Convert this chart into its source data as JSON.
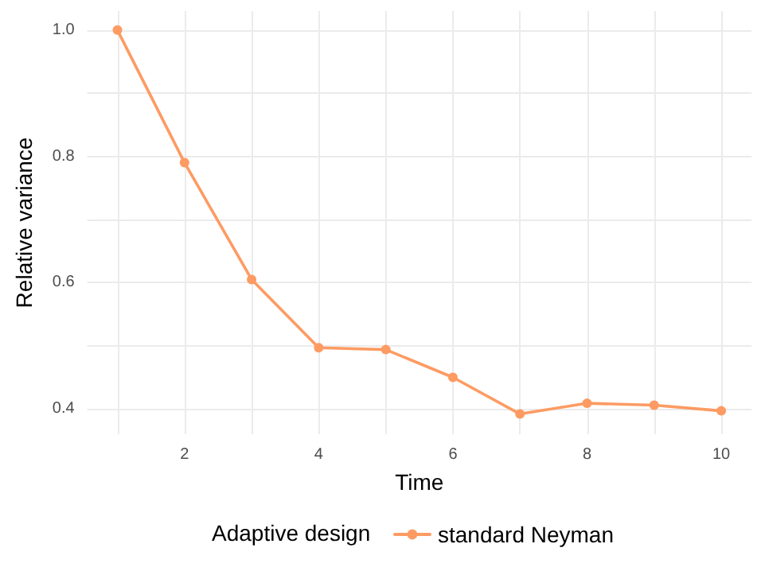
{
  "chart_data": {
    "type": "line",
    "xlabel": "Time",
    "ylabel": "Relative variance",
    "legend_title": "Adaptive design",
    "x": [
      1,
      2,
      3,
      4,
      5,
      6,
      7,
      8,
      9,
      10
    ],
    "series": [
      {
        "name": "standard Neyman",
        "color": "#fd9b63",
        "values": [
          1.0,
          0.79,
          0.605,
          0.497,
          0.494,
          0.45,
          0.392,
          0.409,
          0.406,
          0.397
        ]
      }
    ],
    "xlim": [
      0.55,
      10.45
    ],
    "ylim": [
      0.36,
      1.03
    ],
    "xticks": [
      {
        "value": 1,
        "label": null
      },
      2,
      {
        "value": 3,
        "label": null
      },
      4,
      {
        "value": 5,
        "label": null
      },
      6,
      {
        "value": 7,
        "label": null
      },
      8,
      {
        "value": 9,
        "label": null
      },
      10
    ],
    "yticks": [
      {
        "value": 0.4,
        "label": "0.4"
      },
      {
        "value": 0.5,
        "label": null
      },
      {
        "value": 0.6,
        "label": "0.6"
      },
      {
        "value": 0.7,
        "label": null
      },
      {
        "value": 0.8,
        "label": "0.8"
      },
      {
        "value": 0.9,
        "label": null
      },
      {
        "value": 1,
        "label": "1.0"
      }
    ],
    "grid": true,
    "legend": "bottom",
    "marker": "circle",
    "line_style": "solid"
  }
}
